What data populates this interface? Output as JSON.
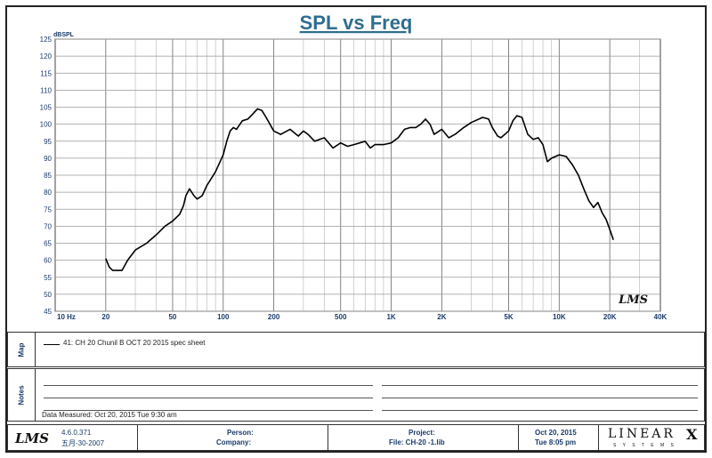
{
  "chart_data": {
    "type": "line",
    "title": "SPL vs Freq",
    "ylabel": "dBSPL",
    "x_scale": "log",
    "xlim": [
      10,
      40000
    ],
    "ylim": [
      45,
      125
    ],
    "y_ticks": [
      125,
      120,
      115,
      110,
      105,
      100,
      95,
      90,
      85,
      80,
      75,
      70,
      65,
      60,
      55,
      50,
      45
    ],
    "x_ticks": [
      {
        "value": 10,
        "label": "10  Hz"
      },
      {
        "value": 20,
        "label": "20"
      },
      {
        "value": 50,
        "label": "50"
      },
      {
        "value": 100,
        "label": "100"
      },
      {
        "value": 200,
        "label": "200"
      },
      {
        "value": 500,
        "label": "500"
      },
      {
        "value": 1000,
        "label": "1K"
      },
      {
        "value": 2000,
        "label": "2K"
      },
      {
        "value": 5000,
        "label": "5K"
      },
      {
        "value": 10000,
        "label": "10K"
      },
      {
        "value": 20000,
        "label": "20K"
      },
      {
        "value": 40000,
        "label": "40K"
      }
    ],
    "grid": true,
    "series": [
      {
        "name": "41: CH 20  Chunil B OCT 20 2015 spec sheet",
        "color": "#000000",
        "points": [
          [
            20,
            60.5
          ],
          [
            21,
            58
          ],
          [
            22,
            57
          ],
          [
            25,
            57
          ],
          [
            27,
            60
          ],
          [
            30,
            63
          ],
          [
            35,
            65
          ],
          [
            40,
            67.5
          ],
          [
            45,
            70
          ],
          [
            50,
            71.5
          ],
          [
            55,
            73.5
          ],
          [
            58,
            76
          ],
          [
            60,
            79
          ],
          [
            63,
            81
          ],
          [
            67,
            79
          ],
          [
            70,
            78
          ],
          [
            75,
            79
          ],
          [
            80,
            82
          ],
          [
            90,
            86
          ],
          [
            100,
            91
          ],
          [
            105,
            95
          ],
          [
            110,
            98
          ],
          [
            115,
            99
          ],
          [
            120,
            98.5
          ],
          [
            130,
            101
          ],
          [
            140,
            101.5
          ],
          [
            150,
            103
          ],
          [
            160,
            104.5
          ],
          [
            170,
            104
          ],
          [
            180,
            102
          ],
          [
            200,
            98
          ],
          [
            220,
            97
          ],
          [
            250,
            98.5
          ],
          [
            280,
            96.5
          ],
          [
            300,
            98
          ],
          [
            320,
            97
          ],
          [
            350,
            95
          ],
          [
            400,
            96
          ],
          [
            450,
            93
          ],
          [
            500,
            94.5
          ],
          [
            550,
            93.5
          ],
          [
            600,
            94
          ],
          [
            700,
            95
          ],
          [
            750,
            93
          ],
          [
            800,
            94
          ],
          [
            900,
            94
          ],
          [
            1000,
            94.5
          ],
          [
            1100,
            96
          ],
          [
            1200,
            98.5
          ],
          [
            1300,
            99
          ],
          [
            1400,
            99
          ],
          [
            1500,
            100
          ],
          [
            1600,
            101.5
          ],
          [
            1700,
            100
          ],
          [
            1800,
            97
          ],
          [
            2000,
            98.5
          ],
          [
            2200,
            96
          ],
          [
            2400,
            97
          ],
          [
            2700,
            99
          ],
          [
            3000,
            100.5
          ],
          [
            3500,
            102
          ],
          [
            3800,
            101.5
          ],
          [
            4000,
            99
          ],
          [
            4300,
            96.5
          ],
          [
            4500,
            96
          ],
          [
            5000,
            98
          ],
          [
            5300,
            101
          ],
          [
            5600,
            102.5
          ],
          [
            6000,
            102
          ],
          [
            6500,
            97
          ],
          [
            7000,
            95.5
          ],
          [
            7500,
            96
          ],
          [
            8000,
            94
          ],
          [
            8500,
            89
          ],
          [
            9000,
            90
          ],
          [
            10000,
            91
          ],
          [
            11000,
            90.5
          ],
          [
            12000,
            88
          ],
          [
            13000,
            85
          ],
          [
            14000,
            81
          ],
          [
            15000,
            77.5
          ],
          [
            16000,
            75.5
          ],
          [
            17000,
            77
          ],
          [
            18000,
            74
          ],
          [
            19000,
            72
          ],
          [
            20000,
            69
          ],
          [
            21000,
            66
          ]
        ]
      }
    ]
  },
  "legend_panel": {
    "tab_label": "Map",
    "entry_text": "41: CH 20  Chunil B OCT 20 2015 spec sheet"
  },
  "notes_panel": {
    "tab_label": "Notes",
    "measured": "Data Measured: Oct 20, 2015  Tue  9:30 am"
  },
  "footer": {
    "logo": "LMS",
    "version": "4.6.0.371",
    "version_date": "五月-30-2007",
    "person_label": "Person:",
    "company_label": "Company:",
    "project_label": "Project:",
    "file_label": "File: CH-20 -1.lib",
    "date": "Oct 20, 2015",
    "time": "Tue  8:05 pm",
    "brand": "LINEAR",
    "brand_x": "X",
    "brand_sub": "S Y S T E M S"
  },
  "watermark": "LMS"
}
